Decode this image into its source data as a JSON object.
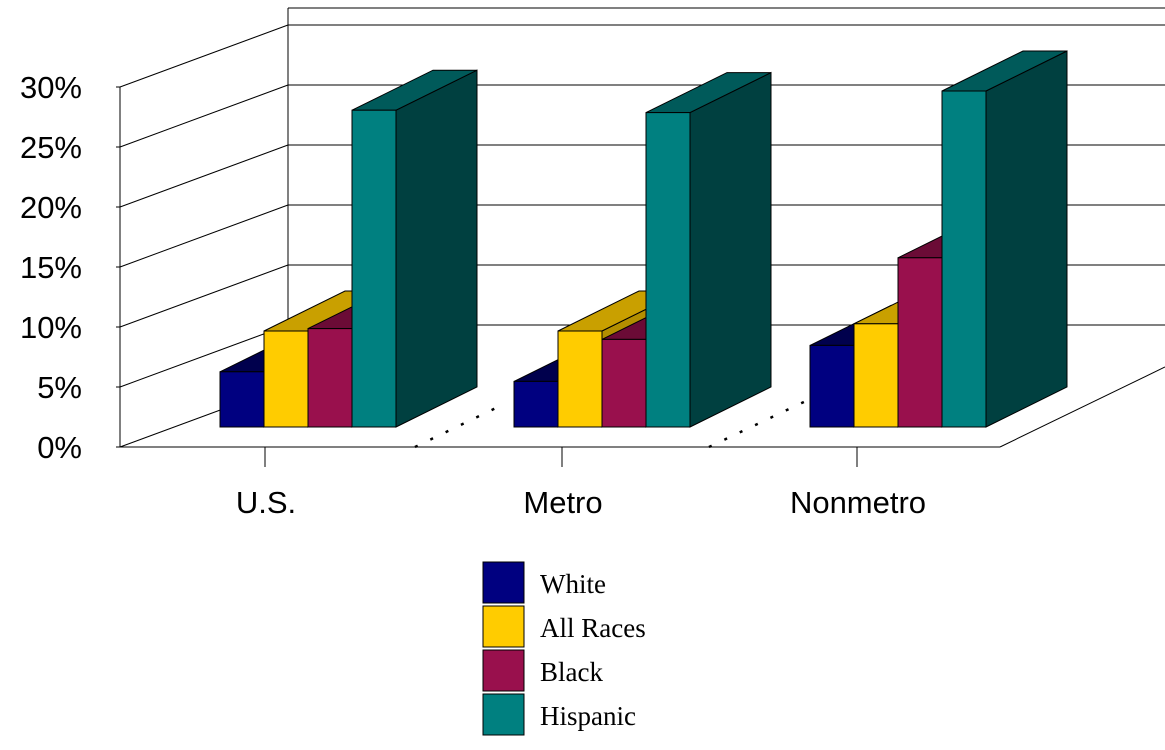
{
  "chart_data": {
    "type": "bar",
    "title": "",
    "xlabel": "",
    "ylabel": "",
    "categories": [
      "U.S.",
      "Metro",
      "Nonmetro"
    ],
    "series": [
      {
        "name": "White",
        "values": [
          4.6,
          3.8,
          6.8
        ],
        "color": "#000080",
        "top_color": "#00004d",
        "side_color": "#000066"
      },
      {
        "name": "All Races",
        "values": [
          8.0,
          8.0,
          8.6
        ],
        "color": "#ffcc00",
        "top_color": "#c9a000",
        "side_color": "#b38f00"
      },
      {
        "name": "Black",
        "values": [
          8.2,
          7.3,
          14.1
        ],
        "color": "#99104d",
        "top_color": "#6b0b36",
        "side_color": "#5c092e"
      },
      {
        "name": "Hispanic",
        "values": [
          26.4,
          26.2,
          28.0
        ],
        "color": "#008080",
        "top_color": "#005a5a",
        "side_color": "#004040"
      }
    ],
    "yticks": [
      "0%",
      "5%",
      "10%",
      "15%",
      "20%",
      "25%",
      "30%"
    ],
    "ylim": [
      0,
      30
    ],
    "grid": true,
    "legend_position": "bottom"
  }
}
